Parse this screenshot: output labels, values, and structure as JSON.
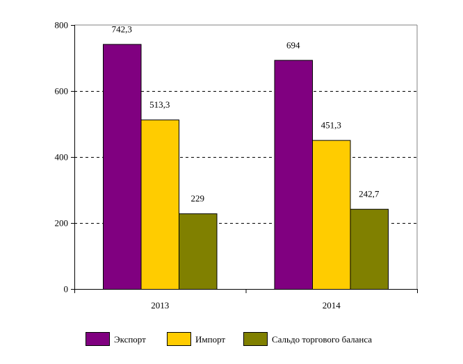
{
  "chart_data": {
    "type": "bar",
    "title": "",
    "xlabel": "",
    "ylabel": "",
    "categories": [
      "2013",
      "2014"
    ],
    "series": [
      {
        "name": "Экспорт",
        "values": [
          742.3,
          694
        ],
        "labels": [
          "742,3",
          "694"
        ],
        "color": "#800080"
      },
      {
        "name": "Импорт",
        "values": [
          513.3,
          451.3
        ],
        "labels": [
          "513,3",
          "451,3"
        ],
        "color": "#FFCC00"
      },
      {
        "name": "Сальдо торгового баланса",
        "values": [
          229,
          242.7
        ],
        "labels": [
          "229",
          "242,7"
        ],
        "color": "#808000"
      }
    ],
    "ylim": [
      0,
      800
    ],
    "yticks": [
      0,
      200,
      400,
      600,
      800
    ],
    "ytick_labels": [
      "0",
      "200",
      "400",
      "600",
      "800"
    ],
    "grid": "horizontal dashed",
    "legend_position": "bottom"
  }
}
